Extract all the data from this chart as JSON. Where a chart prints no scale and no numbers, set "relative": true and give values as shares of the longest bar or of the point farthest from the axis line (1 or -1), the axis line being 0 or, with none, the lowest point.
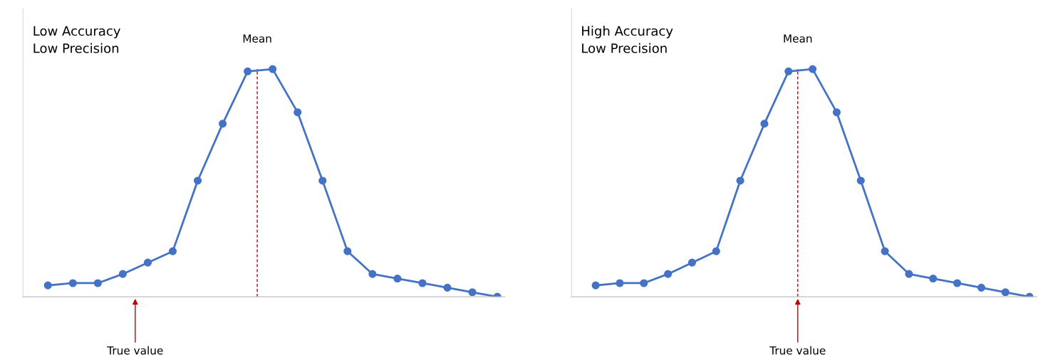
{
  "chart_data": [
    {
      "type": "line",
      "title": "Low Accuracy\nLow Precision",
      "relative": true,
      "categories": [
        null,
        null,
        null,
        null,
        null,
        null,
        null,
        null,
        null,
        null,
        null,
        null,
        null,
        null,
        null,
        null,
        null,
        null,
        null
      ],
      "marker": "circle",
      "line_style": "solid",
      "series": [
        {
          "color": "#4472c4",
          "values": [
            0.05,
            0.06,
            0.06,
            0.1,
            0.15,
            0.2,
            0.51,
            0.76,
            0.99,
            1,
            0.81,
            0.51,
            0.2,
            0.1,
            0.08,
            0.06,
            0.04,
            0.02,
            0
          ]
        }
      ],
      "annotations": [
        "Mean",
        "True value"
      ]
    },
    {
      "type": "line",
      "title": "High Accuracy\nLow Precision",
      "relative": true,
      "categories": [
        null,
        null,
        null,
        null,
        null,
        null,
        null,
        null,
        null,
        null,
        null,
        null,
        null,
        null,
        null,
        null,
        null,
        null,
        null
      ],
      "marker": "circle",
      "line_style": "solid",
      "series": [
        {
          "color": "#4472c4",
          "values": [
            0.05,
            0.06,
            0.06,
            0.1,
            0.15,
            0.2,
            0.51,
            0.76,
            0.99,
            1,
            0.81,
            0.51,
            0.2,
            0.1,
            0.08,
            0.06,
            0.04,
            0.02,
            0
          ]
        }
      ],
      "annotations": [
        "Mean",
        "True value"
      ]
    }
  ]
}
